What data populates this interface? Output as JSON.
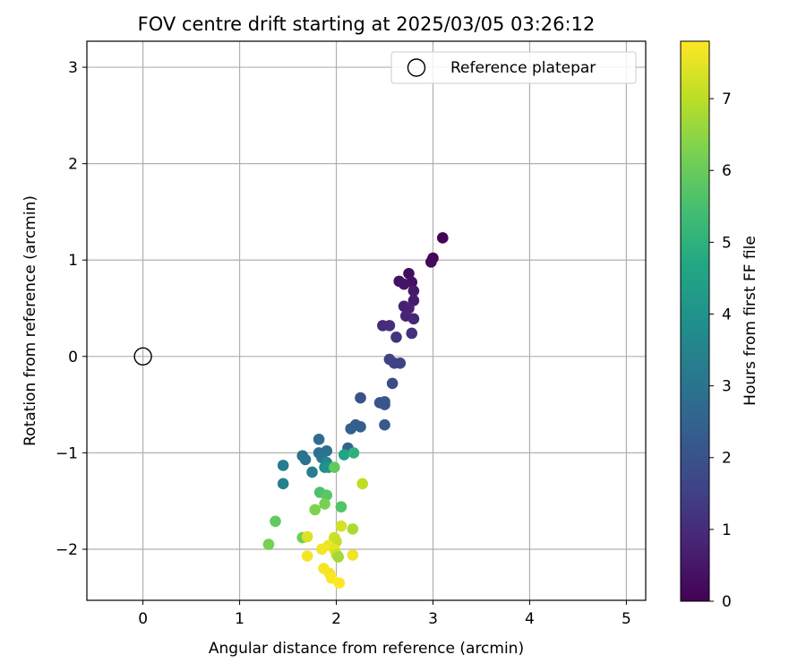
{
  "chart_data": {
    "type": "scatter",
    "title": "FOV centre drift starting at 2025/03/05 03:26:12",
    "xlabel": "Angular distance from reference (arcmin)",
    "ylabel": "Rotation from reference (arcmin)",
    "xlim": [
      -0.58,
      5.2
    ],
    "ylim": [
      -2.53,
      3.27
    ],
    "xticks": [
      0,
      1,
      2,
      3,
      4,
      5
    ],
    "xtick_labels": [
      "0",
      "1",
      "2",
      "3",
      "4",
      "5"
    ],
    "yticks": [
      -2,
      -1,
      0,
      1,
      2,
      3
    ],
    "ytick_labels": [
      "−2",
      "−1",
      "0",
      "1",
      "2",
      "3"
    ],
    "grid": true,
    "legend": {
      "position": "top-right",
      "entries": [
        "Reference platepar"
      ]
    },
    "reference_point": {
      "x": 0,
      "y": 0,
      "label": "Reference platepar"
    },
    "colorbar": {
      "label": "Hours from first FF file",
      "range": [
        0,
        7.8
      ],
      "ticks": [
        0,
        1,
        2,
        3,
        4,
        5,
        6,
        7
      ],
      "colormap": "viridis"
    },
    "series": [
      {
        "points": [
          [
            3.1,
            1.23,
            0.05
          ],
          [
            3.0,
            1.02,
            0.1
          ],
          [
            2.98,
            0.98,
            0.15
          ],
          [
            2.75,
            0.86,
            0.25
          ],
          [
            2.78,
            0.77,
            0.35
          ],
          [
            2.65,
            0.78,
            0.4
          ],
          [
            2.7,
            0.75,
            0.45
          ],
          [
            2.8,
            0.68,
            0.55
          ],
          [
            2.8,
            0.58,
            0.6
          ],
          [
            2.7,
            0.52,
            0.7
          ],
          [
            2.75,
            0.5,
            0.75
          ],
          [
            2.72,
            0.42,
            0.8
          ],
          [
            2.8,
            0.39,
            0.85
          ],
          [
            2.48,
            0.32,
            1.0
          ],
          [
            2.55,
            0.32,
            1.05
          ],
          [
            2.78,
            0.24,
            1.1
          ],
          [
            2.62,
            0.2,
            1.2
          ],
          [
            2.55,
            -0.03,
            1.5
          ],
          [
            2.6,
            -0.07,
            1.55
          ],
          [
            2.66,
            -0.07,
            1.6
          ],
          [
            2.58,
            -0.28,
            1.8
          ],
          [
            2.25,
            -0.43,
            2.0
          ],
          [
            2.45,
            -0.48,
            2.05
          ],
          [
            2.5,
            -0.47,
            2.1
          ],
          [
            2.5,
            -0.5,
            2.15
          ],
          [
            2.5,
            -0.71,
            2.2
          ],
          [
            2.2,
            -0.71,
            2.3
          ],
          [
            2.25,
            -0.73,
            2.35
          ],
          [
            2.15,
            -0.75,
            2.4
          ],
          [
            2.12,
            -0.95,
            2.55
          ],
          [
            1.82,
            -0.86,
            2.8
          ],
          [
            1.82,
            -1.0,
            2.85
          ],
          [
            1.9,
            -0.98,
            2.9
          ],
          [
            1.65,
            -1.03,
            2.95
          ],
          [
            1.68,
            -1.07,
            3.0
          ],
          [
            1.85,
            -1.05,
            3.1
          ],
          [
            1.45,
            -1.13,
            3.2
          ],
          [
            1.75,
            -1.2,
            3.3
          ],
          [
            1.45,
            -1.32,
            3.4
          ],
          [
            1.9,
            -1.1,
            3.6
          ],
          [
            1.88,
            -1.15,
            3.8
          ],
          [
            1.92,
            -1.15,
            4.0
          ],
          [
            2.08,
            -1.02,
            4.6
          ],
          [
            2.18,
            -1.0,
            5.0
          ],
          [
            1.98,
            -1.15,
            5.9
          ],
          [
            1.83,
            -1.41,
            5.6
          ],
          [
            2.05,
            -1.56,
            5.65
          ],
          [
            1.9,
            -1.44,
            5.8
          ],
          [
            1.88,
            -1.53,
            6.2
          ],
          [
            1.78,
            -1.59,
            6.3
          ],
          [
            1.37,
            -1.71,
            5.9
          ],
          [
            1.3,
            -1.95,
            6.2
          ],
          [
            1.65,
            -1.88,
            6.1
          ],
          [
            1.7,
            -1.87,
            7.4
          ],
          [
            2.17,
            -1.79,
            6.8
          ],
          [
            2.05,
            -1.76,
            7.3
          ],
          [
            2.27,
            -1.32,
            7.05
          ],
          [
            1.98,
            -1.88,
            7.2
          ],
          [
            2.0,
            -1.92,
            7.1
          ],
          [
            1.92,
            -1.96,
            7.6
          ],
          [
            1.85,
            -2.0,
            7.65
          ],
          [
            1.98,
            -2.0,
            7.5
          ],
          [
            2.0,
            -2.05,
            7.2
          ],
          [
            1.7,
            -2.07,
            7.7
          ],
          [
            2.02,
            -2.08,
            6.7
          ],
          [
            2.17,
            -2.06,
            7.6
          ],
          [
            1.87,
            -2.2,
            7.7
          ],
          [
            1.93,
            -2.25,
            7.7
          ],
          [
            1.95,
            -2.3,
            7.75
          ],
          [
            2.03,
            -2.35,
            7.8
          ]
        ]
      }
    ]
  }
}
